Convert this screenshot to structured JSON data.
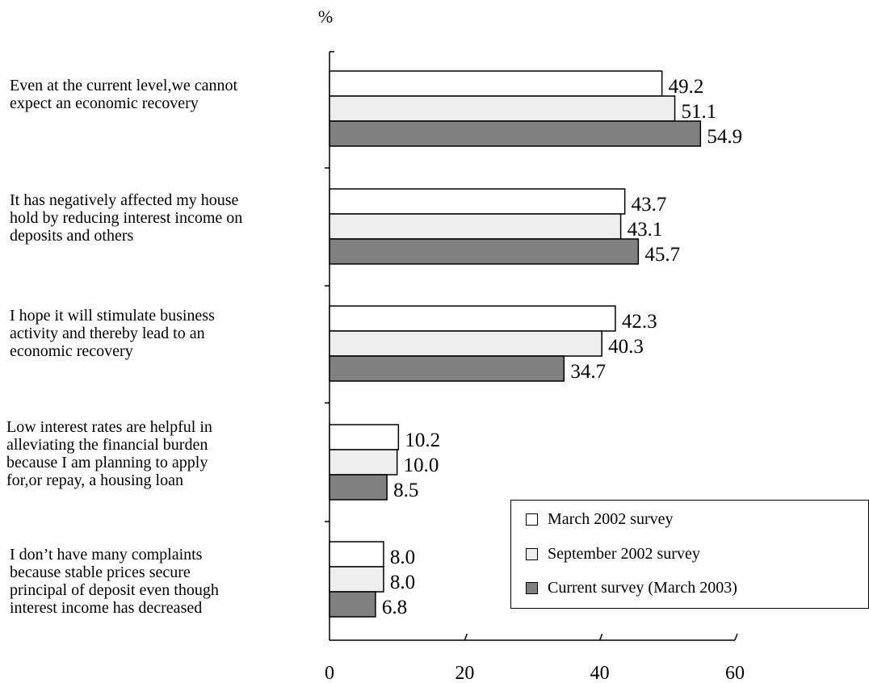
{
  "chart_data": {
    "type": "bar",
    "orientation": "horizontal",
    "unit_label": "%",
    "categories": [
      [
        "Even at the current level,we cannot",
        "expect an economic recovery"
      ],
      [
        "It has negatively affected my house",
        "hold by reducing interest income on",
        "deposits and others"
      ],
      [
        "I hope it will stimulate business",
        "activity and thereby lead to an",
        "economic recovery"
      ],
      [
        "Low interest rates are helpful in",
        "alleviating the financial burden",
        "because I am planning to apply",
        "for,or repay, a housing loan"
      ],
      [
        "I don’t have many complaints",
        "because stable prices secure",
        "principal of deposit even though",
        "interest income has decreased"
      ]
    ],
    "series": [
      {
        "name": "March 2002 survey",
        "color": "#ffffff",
        "values": [
          49.2,
          43.7,
          42.3,
          10.2,
          8.0
        ]
      },
      {
        "name": "September 2002 survey",
        "color": "#eeeeee",
        "values": [
          51.1,
          43.1,
          40.3,
          10.0,
          8.0
        ]
      },
      {
        "name": "Current survey (March 2003)",
        "color": "#808080",
        "values": [
          54.9,
          45.7,
          34.7,
          8.5,
          6.8
        ]
      }
    ],
    "value_labels": [
      [
        "49.2",
        "51.1",
        "54.9"
      ],
      [
        "43.7",
        "43.1",
        "45.7"
      ],
      [
        "42.3",
        "40.3",
        "34.7"
      ],
      [
        "10.2",
        "10.0",
        "8.5"
      ],
      [
        "8.0",
        "8.0",
        "6.8"
      ]
    ],
    "x_ticks": [
      0,
      20,
      40,
      60
    ],
    "xlim": [
      0,
      60
    ],
    "grid": false,
    "legend_position": "bottom-right"
  }
}
